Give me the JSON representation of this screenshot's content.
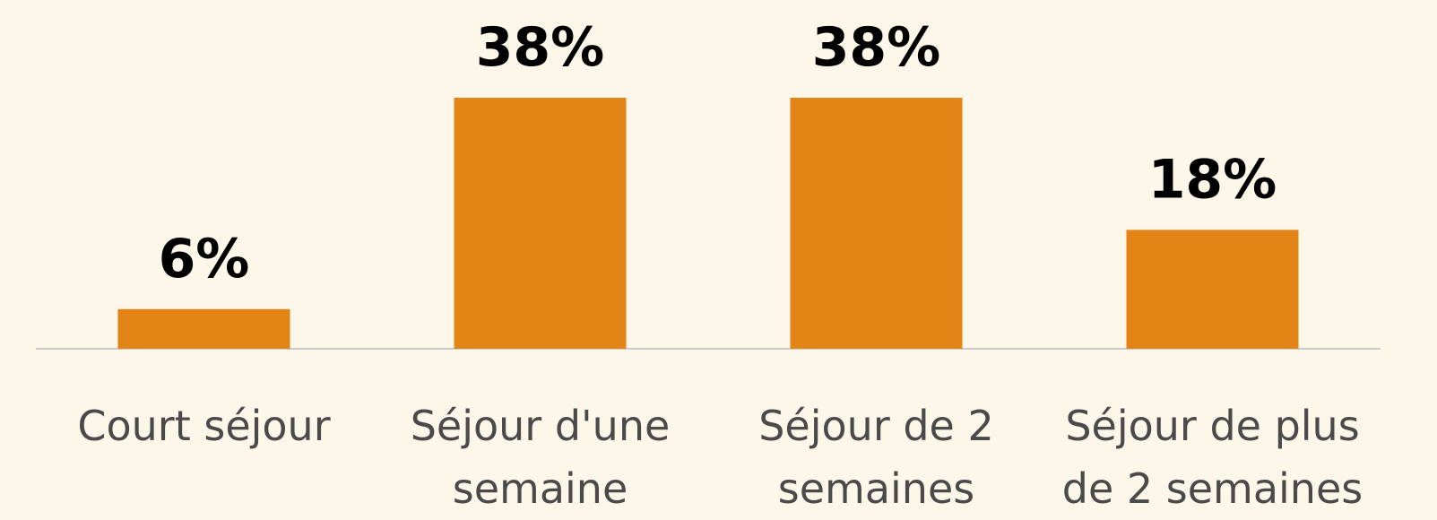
{
  "chart_data": {
    "type": "bar",
    "categories": [
      "Court séjour",
      "Séjour d'une semaine",
      "Séjour de 2 semaines",
      "Séjour de plus de 2 semaines"
    ],
    "values": [
      6,
      38,
      38,
      18
    ],
    "value_labels": [
      "6%",
      "38%",
      "38%",
      "18%"
    ],
    "color": "#e38417"
  }
}
